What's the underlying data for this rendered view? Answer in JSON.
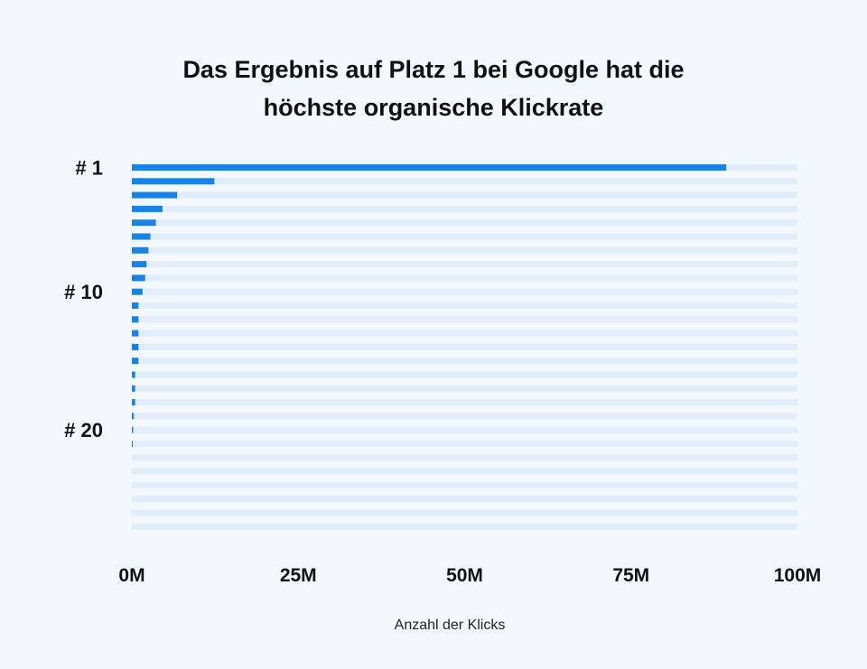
{
  "colors": {
    "background": "#f2f8fe",
    "bar": "#1a82e2",
    "track": "#e1edfa",
    "text": "#111111"
  },
  "chart_data": {
    "type": "bar",
    "orientation": "horizontal",
    "title_lines": [
      "Das Ergebnis auf Platz 1 bei Google hat die",
      "höchste organische Klickrate"
    ],
    "xlabel": "Anzahl der Klicks",
    "ylabel": "",
    "xlim": [
      0,
      100
    ],
    "value_unit": "M",
    "x_ticks": [
      0,
      25,
      50,
      75,
      100
    ],
    "x_tick_labels": [
      "0M",
      "25M",
      "50M",
      "75M",
      "100M"
    ],
    "rank_labels": [
      {
        "rank": 1,
        "label": "# 1"
      },
      {
        "rank": 10,
        "label": "# 10"
      },
      {
        "rank": 20,
        "label": "# 20"
      }
    ],
    "ranks": [
      1,
      2,
      3,
      4,
      5,
      6,
      7,
      8,
      9,
      10,
      11,
      12,
      13,
      14,
      15,
      16,
      17,
      18,
      19,
      20,
      21,
      22,
      23,
      24,
      25,
      26,
      27
    ],
    "values": [
      89.3,
      12.4,
      6.8,
      4.6,
      3.6,
      2.8,
      2.5,
      2.2,
      2.0,
      1.6,
      1.0,
      1.0,
      1.0,
      1.0,
      1.0,
      0.5,
      0.5,
      0.5,
      0.3,
      0.2,
      0.1,
      0,
      0,
      0,
      0,
      0,
      0
    ],
    "grid": false,
    "legend": "none"
  }
}
